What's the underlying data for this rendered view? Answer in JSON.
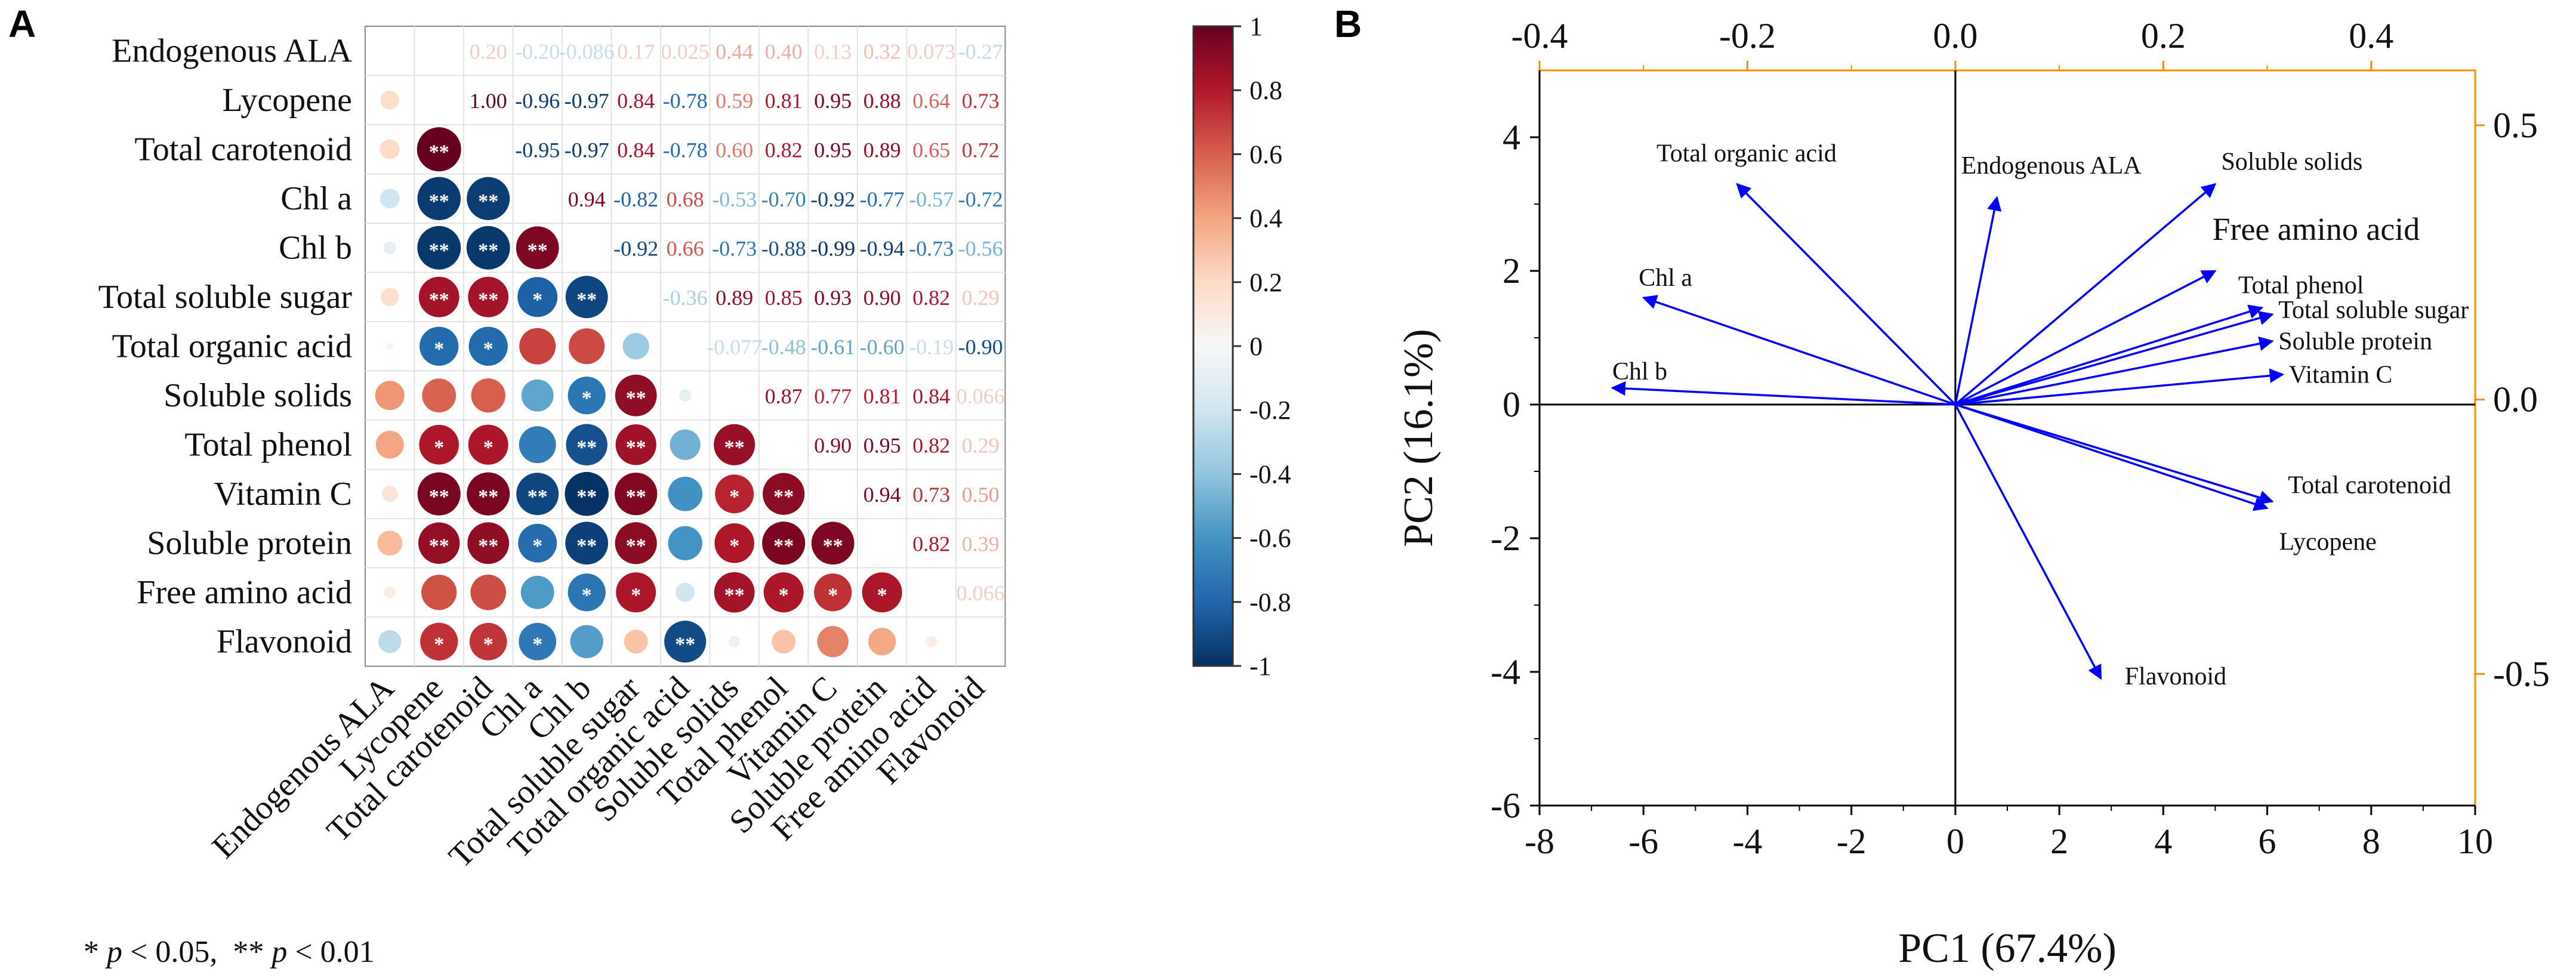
{
  "panels": {
    "a": "A",
    "b": "B"
  },
  "footnote": {
    "p1_prefix": "* ",
    "p1_var": "p",
    "p1_text": " < 0.05,",
    "p2_prefix": "** ",
    "p2_var": "p",
    "p2_text": " < 0.01"
  },
  "colors": {
    "strong_pos": "#67001f",
    "pos": "#d6604d",
    "neutral": "#f7f7f7",
    "neg": "#4393c3",
    "strong_neg": "#053061",
    "pca_arrow": "#0000ff",
    "pca_frame_accent": "#ff8c00"
  },
  "chart_data": [
    {
      "type": "heatmap",
      "subtype": "correlation-matrix",
      "variables": [
        "Endogenous ALA",
        "Lycopene",
        "Total carotenoid",
        "Chl a",
        "Chl b",
        "Total soluble sugar",
        "Total organic acid",
        "Soluble solids",
        "Total phenol",
        "Vitamin C",
        "Soluble protein",
        "Free amino acid",
        "Flavonoid"
      ],
      "matrix": [
        [
          null,
          0.18,
          0.2,
          -0.2,
          -0.086,
          0.17,
          0.025,
          0.44,
          0.4,
          0.13,
          0.32,
          0.073,
          -0.27
        ],
        [
          0.18,
          null,
          1.0,
          -0.96,
          -0.97,
          0.84,
          -0.78,
          0.59,
          0.81,
          0.95,
          0.88,
          0.64,
          0.73
        ],
        [
          0.2,
          1.0,
          null,
          -0.95,
          -0.97,
          0.84,
          -0.78,
          0.6,
          0.82,
          0.95,
          0.89,
          0.65,
          0.72
        ],
        [
          -0.2,
          -0.96,
          -0.95,
          null,
          0.94,
          -0.82,
          0.68,
          -0.53,
          -0.7,
          -0.92,
          -0.77,
          -0.57,
          -0.72
        ],
        [
          -0.086,
          -0.97,
          -0.97,
          0.94,
          null,
          -0.92,
          0.66,
          -0.73,
          -0.88,
          -0.99,
          -0.94,
          -0.73,
          -0.56
        ],
        [
          0.17,
          0.84,
          0.84,
          -0.82,
          -0.92,
          null,
          -0.36,
          0.89,
          0.85,
          0.93,
          0.9,
          0.82,
          0.29
        ],
        [
          0.025,
          -0.78,
          -0.78,
          0.68,
          0.66,
          -0.36,
          null,
          -0.077,
          -0.48,
          -0.61,
          -0.6,
          -0.19,
          -0.9
        ],
        [
          0.44,
          0.59,
          0.6,
          -0.53,
          -0.73,
          0.89,
          -0.077,
          null,
          0.87,
          0.77,
          0.81,
          0.84,
          0.066
        ],
        [
          0.4,
          0.81,
          0.82,
          -0.7,
          -0.88,
          0.85,
          -0.48,
          0.87,
          null,
          0.9,
          0.95,
          0.82,
          0.29
        ],
        [
          0.13,
          0.95,
          0.95,
          -0.92,
          -0.99,
          0.93,
          -0.61,
          0.77,
          0.9,
          null,
          0.94,
          0.73,
          0.5
        ],
        [
          0.32,
          0.88,
          0.89,
          -0.77,
          -0.94,
          0.9,
          -0.6,
          0.81,
          0.95,
          0.94,
          null,
          0.82,
          0.39
        ],
        [
          0.073,
          0.64,
          0.65,
          -0.57,
          -0.73,
          0.82,
          -0.19,
          0.84,
          0.82,
          0.73,
          0.82,
          null,
          0.066
        ],
        [
          -0.27,
          0.73,
          0.72,
          -0.72,
          -0.56,
          0.29,
          -0.9,
          0.066,
          0.29,
          0.5,
          0.39,
          0.066,
          null
        ]
      ],
      "upper_labels": [
        [
          null,
          null,
          "0.20",
          "-0.20",
          "-0.086",
          "0.17",
          "0.025",
          "0.44",
          "0.40",
          "0.13",
          "0.32",
          "0.073",
          "-0.27"
        ],
        [
          null,
          null,
          "1.00",
          "-0.96",
          "-0.97",
          "0.84",
          "-0.78",
          "0.59",
          "0.81",
          "0.95",
          "0.88",
          "0.64",
          "0.73"
        ],
        [
          null,
          null,
          null,
          "-0.95",
          "-0.97",
          "0.84",
          "-0.78",
          "0.60",
          "0.82",
          "0.95",
          "0.89",
          "0.65",
          "0.72"
        ],
        [
          null,
          null,
          null,
          null,
          "0.94",
          "-0.82",
          "0.68",
          "-0.53",
          "-0.70",
          "-0.92",
          "-0.77",
          "-0.57",
          "-0.72"
        ],
        [
          null,
          null,
          null,
          null,
          null,
          "-0.92",
          "0.66",
          "-0.73",
          "-0.88",
          "-0.99",
          "-0.94",
          "-0.73",
          "-0.56"
        ],
        [
          null,
          null,
          null,
          null,
          null,
          null,
          "-0.36",
          "0.89",
          "0.85",
          "0.93",
          "0.90",
          "0.82",
          "0.29"
        ],
        [
          null,
          null,
          null,
          null,
          null,
          null,
          null,
          "-0.077",
          "-0.48",
          "-0.61",
          "-0.60",
          "-0.19",
          "-0.90"
        ],
        [
          null,
          null,
          null,
          null,
          null,
          null,
          null,
          null,
          "0.87",
          "0.77",
          "0.81",
          "0.84",
          "0.066"
        ],
        [
          null,
          null,
          null,
          null,
          null,
          null,
          null,
          null,
          null,
          "0.90",
          "0.95",
          "0.82",
          "0.29"
        ],
        [
          null,
          null,
          null,
          null,
          null,
          null,
          null,
          null,
          null,
          null,
          "0.94",
          "0.73",
          "0.50"
        ],
        [
          null,
          null,
          null,
          null,
          null,
          null,
          null,
          null,
          null,
          null,
          null,
          "0.82",
          "0.39"
        ],
        [
          null,
          null,
          null,
          null,
          null,
          null,
          null,
          null,
          null,
          null,
          null,
          null,
          "0.066"
        ],
        [
          null,
          null,
          null,
          null,
          null,
          null,
          null,
          null,
          null,
          null,
          null,
          null,
          null
        ]
      ],
      "significance": [
        [
          "",
          "",
          "",
          "",
          "",
          "",
          "",
          "",
          "",
          "",
          "",
          "",
          ""
        ],
        [
          "",
          "",
          "",
          "",
          "",
          "",
          "",
          "",
          "",
          "",
          "",
          "",
          ""
        ],
        [
          "",
          "**",
          "",
          "",
          "",
          "",
          "",
          "",
          "",
          "",
          "",
          "",
          ""
        ],
        [
          "",
          "**",
          "**",
          "",
          "",
          "",
          "",
          "",
          "",
          "",
          "",
          "",
          ""
        ],
        [
          "",
          "**",
          "**",
          "**",
          "",
          "",
          "",
          "",
          "",
          "",
          "",
          "",
          ""
        ],
        [
          "",
          "**",
          "**",
          "*",
          "**",
          "",
          "",
          "",
          "",
          "",
          "",
          "",
          ""
        ],
        [
          "",
          "*",
          "*",
          "",
          "",
          "",
          "",
          "",
          "",
          "",
          "",
          "",
          ""
        ],
        [
          "",
          "",
          "",
          "",
          "*",
          "**",
          "",
          "",
          "",
          "",
          "",
          "",
          ""
        ],
        [
          "",
          "*",
          "*",
          "",
          "**",
          "**",
          "",
          "**",
          "",
          "",
          "",
          "",
          ""
        ],
        [
          "",
          "**",
          "**",
          "**",
          "**",
          "**",
          "",
          "*",
          "**",
          "",
          "",
          "",
          ""
        ],
        [
          "",
          "**",
          "**",
          "*",
          "**",
          "**",
          "",
          "*",
          "**",
          "**",
          "",
          "",
          ""
        ],
        [
          "",
          "",
          "",
          "",
          "*",
          "*",
          "",
          "**",
          "*",
          "*",
          "*",
          "",
          ""
        ],
        [
          "",
          "*",
          "*",
          "*",
          "",
          "",
          "**",
          "",
          "",
          "",
          "",
          "",
          ""
        ]
      ],
      "colorbar": {
        "min": -1,
        "max": 1,
        "ticks": [
          "1",
          "0.8",
          "0.6",
          "0.4",
          "0.2",
          "0",
          "-0.2",
          "-0.4",
          "-0.6",
          "-0.8",
          "-1"
        ]
      }
    },
    {
      "type": "scatter",
      "subtype": "pca-biplot-vectors",
      "xlabel": "PC1 (67.4%)",
      "ylabel": "PC2 (16.1%)",
      "xlim": [
        -8,
        10
      ],
      "ylim": [
        -6,
        5
      ],
      "x_ticks": [
        "-8",
        "-6",
        "-4",
        "-2",
        "0",
        "2",
        "4",
        "6",
        "8",
        "10"
      ],
      "y_ticks": [
        "-6",
        "-4",
        "-2",
        "0",
        "2",
        "4"
      ],
      "top_ticks": [
        "-0.4",
        "-0.2",
        "0.0",
        "0.2",
        "0.4"
      ],
      "top_lim": [
        -0.4,
        0.5
      ],
      "right_ticks": [
        "0.5",
        "0.0",
        "-0.5"
      ],
      "right_lim": [
        -0.74,
        0.6
      ],
      "vectors": [
        {
          "name": "Total organic acid",
          "x": -4.2,
          "y": 3.3
        },
        {
          "name": "Endogenous ALA",
          "x": 0.8,
          "y": 3.1
        },
        {
          "name": "Soluble solids",
          "x": 5.0,
          "y": 3.3
        },
        {
          "name": "Chl a",
          "x": -6.0,
          "y": 1.6
        },
        {
          "name": "Chl b",
          "x": -6.6,
          "y": 0.25
        },
        {
          "name": "Free amino acid",
          "x": 5.0,
          "y": 2.0
        },
        {
          "name": "Total phenol",
          "x": 5.9,
          "y": 1.45
        },
        {
          "name": "Total soluble sugar",
          "x": 6.1,
          "y": 1.35
        },
        {
          "name": "Soluble protein",
          "x": 6.1,
          "y": 0.95
        },
        {
          "name": "Vitamin C",
          "x": 6.3,
          "y": 0.45
        },
        {
          "name": "Total carotenoid",
          "x": 6.1,
          "y": -1.45
        },
        {
          "name": "Lycopene",
          "x": 6.0,
          "y": -1.55
        },
        {
          "name": "Flavonoid",
          "x": 2.8,
          "y": -4.1
        }
      ]
    }
  ]
}
